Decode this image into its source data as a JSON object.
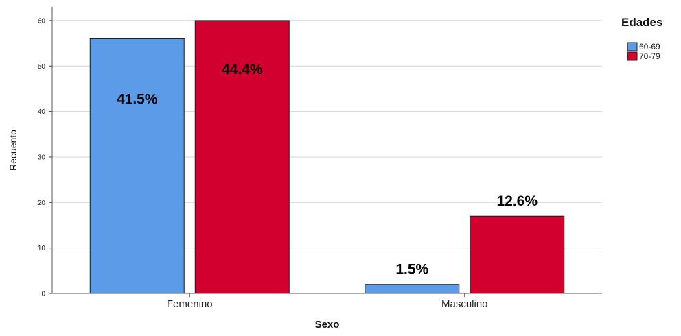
{
  "chart_data": {
    "type": "bar",
    "title": "",
    "xlabel": "Sexo",
    "ylabel": "Recuento",
    "categories": [
      "Femenino",
      "Masculino"
    ],
    "series": [
      {
        "name": "60-69",
        "color": "#5B9BE8",
        "values": [
          56,
          2
        ],
        "labels": [
          "41.5%",
          "1.5%"
        ]
      },
      {
        "name": "70-79",
        "color": "#D1002F",
        "values": [
          60,
          17
        ],
        "labels": [
          "44.4%",
          "12.6%"
        ]
      }
    ],
    "ylim": [
      0,
      63
    ],
    "yticks": [
      0,
      10,
      20,
      30,
      40,
      50,
      60
    ],
    "grid": true,
    "legend": {
      "title": "Edades",
      "position": "top-right"
    }
  }
}
